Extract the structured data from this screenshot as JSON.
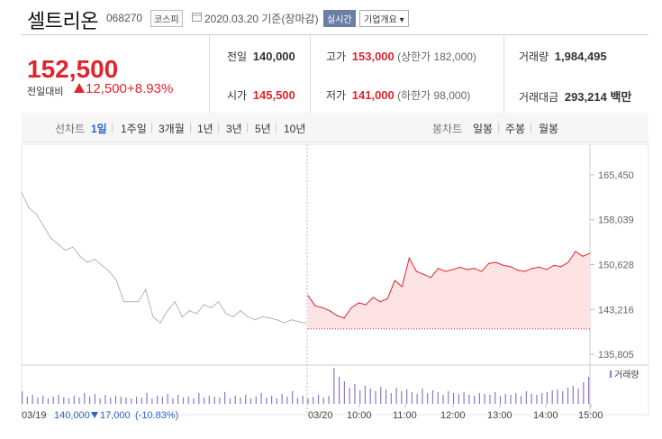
{
  "header": {
    "name": "셀트리온",
    "code": "068270",
    "market": "코스피",
    "date": "2020.03.20 기준(장마감)",
    "realtime_label": "실시간",
    "info_label": "기업개요 ▾"
  },
  "quote": {
    "price": "152,500",
    "change_label": "전일대비",
    "change": "12,500",
    "rate": "+8.93%",
    "prev_close_label": "전일",
    "prev_close": "140,000",
    "open_label": "시가",
    "open": "145,500",
    "high_label": "고가",
    "high": "153,000",
    "upper_limit": "(상한가 182,000)",
    "low_label": "저가",
    "low": "141,000",
    "lower_limit": "(하한가 98,000)",
    "volume_label": "거래량",
    "volume": "1,984,495",
    "amount_label": "거래대금",
    "amount": "293,214 백만"
  },
  "tabs": {
    "line_label": "선차트",
    "periods": [
      "1일",
      "1주일",
      "3개월",
      "1년",
      "3년",
      "5년",
      "10년"
    ],
    "candle_label": "봉차트",
    "candles": [
      "일봉",
      "주봉",
      "월봉"
    ],
    "selected": "1일"
  },
  "colors": {
    "up": "#e0252e",
    "down": "#2f62c8",
    "prev": "#b5b5b5",
    "volume": "#8a78c8"
  },
  "chart_data": {
    "type": "line",
    "title": "",
    "ylabel": "",
    "xlabel": "",
    "ylim": [
      135805,
      165450
    ],
    "yticks": [
      165450,
      158039,
      150628,
      143216,
      135805
    ],
    "ytick_labels": [
      "165,450",
      "158,039",
      "150,628",
      "143,216",
      "135,805"
    ],
    "baseline": 140000,
    "series": [
      {
        "name": "",
        "x": [
          "03/19 09:00",
          "09:10",
          "09:20",
          "09:30",
          "09:40",
          "09:50",
          "10:00",
          "10:10",
          "10:20",
          "10:30",
          "10:40",
          "10:50",
          "11:00",
          "11:10",
          "11:20",
          "11:30",
          "11:40",
          "11:50",
          "12:00",
          "12:10",
          "12:20",
          "12:30",
          "12:40",
          "12:50",
          "13:00",
          "13:10",
          "13:20",
          "13:30",
          "13:40",
          "13:50",
          "14:00",
          "14:10",
          "14:20",
          "14:30",
          "14:40",
          "14:50",
          "15:00",
          "15:10",
          "15:20",
          "15:30"
        ],
        "values": [
          162500,
          160000,
          159000,
          157000,
          155000,
          154000,
          153000,
          153500,
          152000,
          151000,
          151500,
          150500,
          149500,
          148000,
          144500,
          144500,
          144500,
          146500,
          142000,
          141000,
          143000,
          144500,
          142000,
          143000,
          142500,
          144000,
          143500,
          144500,
          142500,
          142000,
          143000,
          142000,
          141500,
          142000,
          141800,
          141500,
          141000,
          141500,
          141200,
          140900
        ]
      },
      {
        "name": "",
        "x": [
          "03/20 09:00",
          "09:10",
          "09:20",
          "09:30",
          "09:40",
          "09:50",
          "10:00",
          "10:10",
          "10:20",
          "10:30",
          "10:40",
          "10:50",
          "11:00",
          "11:10",
          "11:20",
          "11:30",
          "11:40",
          "11:50",
          "12:00",
          "12:10",
          "12:20",
          "12:30",
          "12:40",
          "12:50",
          "13:00",
          "13:10",
          "13:20",
          "13:30",
          "13:40",
          "13:50",
          "14:00",
          "14:10",
          "14:20",
          "14:30",
          "14:40",
          "14:50",
          "15:00",
          "15:10",
          "15:20",
          "15:30"
        ],
        "values": [
          145500,
          143800,
          143500,
          143000,
          142200,
          141800,
          143500,
          144300,
          144000,
          145200,
          144500,
          145000,
          148000,
          147000,
          151700,
          149500,
          149000,
          148500,
          150000,
          149500,
          149800,
          150200,
          149800,
          150000,
          149500,
          150800,
          151000,
          150500,
          150300,
          149700,
          149500,
          150000,
          150200,
          149800,
          150500,
          150300,
          151000,
          152800,
          152000,
          152500
        ]
      }
    ],
    "volume": {
      "name": "거래량",
      "values": [
        14,
        8,
        10,
        7,
        9,
        6,
        8,
        10,
        7,
        6,
        9,
        7,
        12,
        8,
        11,
        6,
        10,
        7,
        9,
        8,
        7,
        6,
        8,
        7,
        12,
        6,
        9,
        8,
        11,
        6,
        10,
        7,
        8,
        6,
        12,
        7,
        9,
        8,
        7,
        13,
        6,
        9,
        7,
        10,
        6,
        8,
        12,
        7,
        9,
        6,
        11,
        8,
        14,
        7,
        9,
        6,
        8,
        10,
        7,
        9,
        40,
        30,
        25,
        18,
        22,
        15,
        20,
        17,
        14,
        19,
        16,
        12,
        18,
        14,
        16,
        13,
        11,
        17,
        12,
        15,
        13,
        10,
        14,
        12,
        11,
        13,
        10,
        9,
        12,
        11,
        10,
        13,
        9,
        11,
        10,
        12,
        9,
        14,
        11,
        10,
        12,
        13,
        15,
        16,
        14,
        18,
        20,
        17,
        24,
        30
      ]
    },
    "xticks": [
      "03/19",
      "03/20",
      "10:00",
      "11:00",
      "12:00",
      "13:00",
      "14:00",
      "15:00"
    ],
    "bottom_info": {
      "prev_close": "140,000",
      "change": "17,000",
      "rate": "(-10.83%)"
    }
  }
}
